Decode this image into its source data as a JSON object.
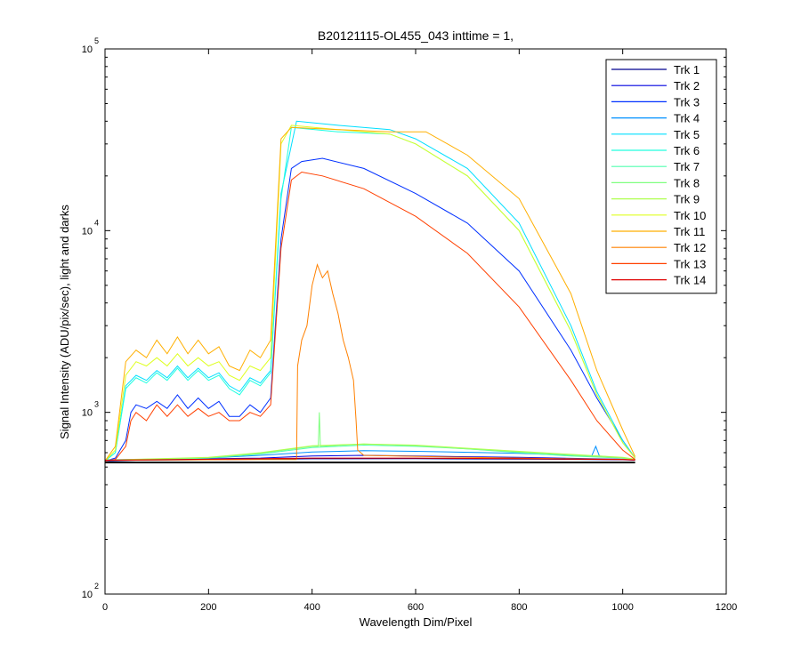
{
  "chart_data": {
    "type": "line",
    "title": "B20121115-OL455_043 inttime = 1,",
    "xlabel": "Wavelength Dim/Pixel",
    "ylabel": "Signal Intensity (ADU/pix/sec), light and darks",
    "xlim": [
      0,
      1200
    ],
    "ylim": [
      100,
      100000
    ],
    "yscale": "log",
    "xticks": [
      0,
      200,
      400,
      600,
      800,
      1000,
      1200
    ],
    "yticks": [
      {
        "base": "10",
        "exp": "2",
        "value": 100
      },
      {
        "base": "10",
        "exp": "3",
        "value": 1000
      },
      {
        "base": "10",
        "exp": "4",
        "value": 10000
      },
      {
        "base": "10",
        "exp": "5",
        "value": 100000
      }
    ],
    "grid": false,
    "legend_position": "top-right",
    "series": [
      {
        "name": "Trk 1",
        "color": "#00008f",
        "points": [
          [
            0,
            540
          ],
          [
            60,
            545
          ],
          [
            200,
            548
          ],
          [
            400,
            555
          ],
          [
            600,
            556
          ],
          [
            800,
            553
          ],
          [
            1000,
            548
          ],
          [
            1024,
            545
          ]
        ]
      },
      {
        "name": "Trk 2",
        "color": "#0000df",
        "points": [
          [
            0,
            545
          ],
          [
            60,
            550
          ],
          [
            200,
            555
          ],
          [
            300,
            560
          ],
          [
            400,
            575
          ],
          [
            500,
            580
          ],
          [
            600,
            575
          ],
          [
            800,
            565
          ],
          [
            1000,
            552
          ],
          [
            1024,
            548
          ]
        ]
      },
      {
        "name": "Trk 3",
        "color": "#0030ff",
        "points": [
          [
            0,
            540
          ],
          [
            20,
            560
          ],
          [
            40,
            700
          ],
          [
            50,
            1000
          ],
          [
            60,
            1100
          ],
          [
            80,
            1050
          ],
          [
            100,
            1150
          ],
          [
            120,
            1050
          ],
          [
            140,
            1250
          ],
          [
            160,
            1050
          ],
          [
            180,
            1200
          ],
          [
            200,
            1050
          ],
          [
            220,
            1150
          ],
          [
            240,
            950
          ],
          [
            260,
            950
          ],
          [
            280,
            1100
          ],
          [
            300,
            1000
          ],
          [
            320,
            1200
          ],
          [
            340,
            9000
          ],
          [
            360,
            22000
          ],
          [
            380,
            24000
          ],
          [
            420,
            25000
          ],
          [
            500,
            22000
          ],
          [
            600,
            16000
          ],
          [
            700,
            11000
          ],
          [
            800,
            6000
          ],
          [
            900,
            2200
          ],
          [
            950,
            1200
          ],
          [
            1000,
            700
          ],
          [
            1024,
            560
          ]
        ]
      },
      {
        "name": "Trk 4",
        "color": "#0090ff",
        "points": [
          [
            0,
            548
          ],
          [
            100,
            552
          ],
          [
            200,
            560
          ],
          [
            300,
            580
          ],
          [
            400,
            605
          ],
          [
            500,
            615
          ],
          [
            600,
            610
          ],
          [
            800,
            595
          ],
          [
            900,
            580
          ],
          [
            940,
            575
          ],
          [
            948,
            650
          ],
          [
            955,
            575
          ],
          [
            1000,
            560
          ],
          [
            1024,
            550
          ]
        ]
      },
      {
        "name": "Trk 5",
        "color": "#00dfff",
        "points": [
          [
            0,
            540
          ],
          [
            20,
            600
          ],
          [
            40,
            1400
          ],
          [
            60,
            1600
          ],
          [
            80,
            1500
          ],
          [
            100,
            1700
          ],
          [
            120,
            1550
          ],
          [
            140,
            1800
          ],
          [
            160,
            1550
          ],
          [
            180,
            1750
          ],
          [
            200,
            1550
          ],
          [
            220,
            1650
          ],
          [
            240,
            1400
          ],
          [
            260,
            1300
          ],
          [
            280,
            1550
          ],
          [
            300,
            1450
          ],
          [
            320,
            1700
          ],
          [
            340,
            16000
          ],
          [
            370,
            40000
          ],
          [
            450,
            38000
          ],
          [
            550,
            36000
          ],
          [
            600,
            32000
          ],
          [
            700,
            22000
          ],
          [
            800,
            11000
          ],
          [
            900,
            3000
          ],
          [
            950,
            1300
          ],
          [
            1000,
            700
          ],
          [
            1024,
            560
          ]
        ]
      },
      {
        "name": "Trk 6",
        "color": "#20ffdf",
        "points": [
          [
            0,
            540
          ],
          [
            20,
            600
          ],
          [
            40,
            1350
          ],
          [
            60,
            1550
          ],
          [
            80,
            1450
          ],
          [
            100,
            1650
          ],
          [
            120,
            1500
          ],
          [
            140,
            1750
          ],
          [
            160,
            1500
          ],
          [
            180,
            1700
          ],
          [
            200,
            1500
          ],
          [
            220,
            1600
          ],
          [
            240,
            1350
          ],
          [
            260,
            1250
          ],
          [
            280,
            1500
          ],
          [
            300,
            1400
          ],
          [
            320,
            1650
          ],
          [
            340,
            15000
          ],
          [
            360,
            37000
          ],
          [
            450,
            35000
          ],
          [
            550,
            34000
          ],
          [
            600,
            30000
          ],
          [
            700,
            20000
          ],
          [
            800,
            10000
          ],
          [
            900,
            2800
          ],
          [
            950,
            1250
          ],
          [
            1000,
            680
          ],
          [
            1024,
            560
          ]
        ]
      },
      {
        "name": "Trk 7",
        "color": "#50ffaf",
        "points": [
          [
            0,
            545
          ],
          [
            200,
            560
          ],
          [
            300,
            590
          ],
          [
            400,
            640
          ],
          [
            500,
            660
          ],
          [
            600,
            650
          ],
          [
            700,
            630
          ],
          [
            800,
            600
          ],
          [
            900,
            575
          ],
          [
            1000,
            560
          ],
          [
            1024,
            550
          ]
        ]
      },
      {
        "name": "Trk 8",
        "color": "#80ff80",
        "points": [
          [
            0,
            545
          ],
          [
            200,
            562
          ],
          [
            300,
            595
          ],
          [
            400,
            650
          ],
          [
            412,
            650
          ],
          [
            414,
            1000
          ],
          [
            416,
            650
          ],
          [
            500,
            670
          ],
          [
            600,
            655
          ],
          [
            800,
            605
          ],
          [
            1000,
            560
          ],
          [
            1024,
            550
          ]
        ]
      },
      {
        "name": "Trk 9",
        "color": "#afff50",
        "points": [
          [
            0,
            546
          ],
          [
            200,
            565
          ],
          [
            300,
            600
          ],
          [
            400,
            655
          ],
          [
            500,
            670
          ],
          [
            600,
            660
          ],
          [
            800,
            610
          ],
          [
            1000,
            565
          ],
          [
            1024,
            552
          ]
        ]
      },
      {
        "name": "Trk 10",
        "color": "#dfff20",
        "points": [
          [
            0,
            540
          ],
          [
            20,
            620
          ],
          [
            40,
            1600
          ],
          [
            60,
            1900
          ],
          [
            80,
            1800
          ],
          [
            100,
            2000
          ],
          [
            120,
            1800
          ],
          [
            140,
            2100
          ],
          [
            160,
            1800
          ],
          [
            180,
            2000
          ],
          [
            200,
            1800
          ],
          [
            220,
            1900
          ],
          [
            240,
            1600
          ],
          [
            260,
            1500
          ],
          [
            280,
            1800
          ],
          [
            300,
            1700
          ],
          [
            320,
            2000
          ],
          [
            340,
            30000
          ],
          [
            360,
            38000
          ],
          [
            450,
            36000
          ],
          [
            550,
            34000
          ],
          [
            600,
            30000
          ],
          [
            700,
            20000
          ],
          [
            800,
            10000
          ],
          [
            900,
            2800
          ],
          [
            950,
            1250
          ],
          [
            1000,
            680
          ],
          [
            1024,
            560
          ]
        ]
      },
      {
        "name": "Trk 11",
        "color": "#ffaf00",
        "points": [
          [
            0,
            540
          ],
          [
            20,
            650
          ],
          [
            40,
            1900
          ],
          [
            60,
            2200
          ],
          [
            80,
            2000
          ],
          [
            100,
            2500
          ],
          [
            120,
            2100
          ],
          [
            140,
            2600
          ],
          [
            160,
            2100
          ],
          [
            180,
            2500
          ],
          [
            200,
            2100
          ],
          [
            220,
            2300
          ],
          [
            240,
            1800
          ],
          [
            260,
            1700
          ],
          [
            280,
            2200
          ],
          [
            300,
            2000
          ],
          [
            320,
            2500
          ],
          [
            340,
            32000
          ],
          [
            360,
            37000
          ],
          [
            450,
            36000
          ],
          [
            550,
            35000
          ],
          [
            620,
            35000
          ],
          [
            700,
            26000
          ],
          [
            800,
            15000
          ],
          [
            900,
            4500
          ],
          [
            950,
            1700
          ],
          [
            1000,
            800
          ],
          [
            1024,
            570
          ]
        ]
      },
      {
        "name": "Trk 12",
        "color": "#ff8000",
        "points": [
          [
            0,
            545
          ],
          [
            300,
            550
          ],
          [
            370,
            550
          ],
          [
            372,
            1800
          ],
          [
            380,
            2500
          ],
          [
            390,
            3000
          ],
          [
            400,
            5000
          ],
          [
            410,
            6500
          ],
          [
            420,
            5500
          ],
          [
            430,
            6000
          ],
          [
            440,
            4500
          ],
          [
            450,
            3500
          ],
          [
            460,
            2500
          ],
          [
            470,
            2000
          ],
          [
            480,
            1500
          ],
          [
            485,
            900
          ],
          [
            488,
            620
          ],
          [
            500,
            580
          ],
          [
            700,
            565
          ],
          [
            900,
            555
          ],
          [
            1024,
            550
          ]
        ]
      },
      {
        "name": "Trk 13",
        "color": "#ff4000",
        "points": [
          [
            0,
            540
          ],
          [
            20,
            550
          ],
          [
            40,
            650
          ],
          [
            50,
            900
          ],
          [
            60,
            1000
          ],
          [
            80,
            900
          ],
          [
            100,
            1100
          ],
          [
            120,
            950
          ],
          [
            140,
            1100
          ],
          [
            160,
            950
          ],
          [
            180,
            1050
          ],
          [
            200,
            950
          ],
          [
            220,
            1000
          ],
          [
            240,
            900
          ],
          [
            260,
            900
          ],
          [
            280,
            1000
          ],
          [
            300,
            950
          ],
          [
            320,
            1100
          ],
          [
            340,
            8000
          ],
          [
            360,
            19000
          ],
          [
            380,
            21000
          ],
          [
            420,
            20000
          ],
          [
            500,
            17000
          ],
          [
            600,
            12000
          ],
          [
            700,
            7500
          ],
          [
            800,
            3800
          ],
          [
            900,
            1500
          ],
          [
            950,
            900
          ],
          [
            1000,
            620
          ],
          [
            1024,
            550
          ]
        ]
      },
      {
        "name": "Trk 14",
        "color": "#df0000",
        "points": [
          [
            0,
            545
          ],
          [
            200,
            552
          ],
          [
            400,
            560
          ],
          [
            600,
            560
          ],
          [
            800,
            556
          ],
          [
            1000,
            550
          ],
          [
            1024,
            546
          ]
        ]
      },
      {
        "name": "",
        "color": "#000000",
        "points": [
          [
            0,
            530
          ],
          [
            1024,
            530
          ]
        ]
      }
    ]
  }
}
